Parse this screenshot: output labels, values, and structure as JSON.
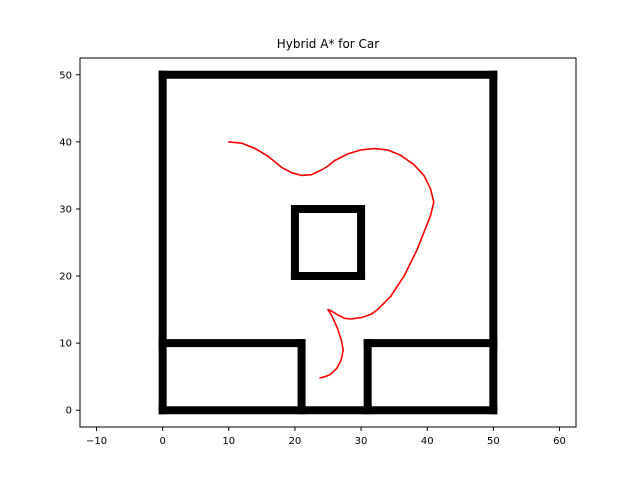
{
  "chart_data": {
    "type": "line",
    "title": "Hybrid A* for Car",
    "xlabel": "",
    "ylabel": "",
    "xlim": [
      -12.5,
      62.5
    ],
    "ylim": [
      -2.5,
      52.5
    ],
    "xticks": [
      -10,
      0,
      10,
      20,
      30,
      40,
      50,
      60
    ],
    "yticks": [
      0,
      10,
      20,
      30,
      40,
      50
    ],
    "grid": false,
    "colors": {
      "obstacle": "#000000",
      "path": "#ff0000",
      "axes": "#000000"
    },
    "series": [
      {
        "kind": "obstacles",
        "segments": [
          [
            [
              0,
              0
            ],
            [
              50,
              0
            ]
          ],
          [
            [
              50,
              0
            ],
            [
              50,
              50
            ]
          ],
          [
            [
              50,
              50
            ],
            [
              0,
              50
            ]
          ],
          [
            [
              0,
              50
            ],
            [
              0,
              0
            ]
          ],
          [
            [
              0,
              10
            ],
            [
              21,
              10
            ]
          ],
          [
            [
              21,
              10
            ],
            [
              21,
              0
            ]
          ],
          [
            [
              31,
              0
            ],
            [
              31,
              10
            ]
          ],
          [
            [
              31,
              10
            ],
            [
              50,
              10
            ]
          ],
          [
            [
              20,
              20
            ],
            [
              30,
              20
            ]
          ],
          [
            [
              30,
              20
            ],
            [
              30,
              30
            ]
          ],
          [
            [
              30,
              30
            ],
            [
              20,
              30
            ]
          ],
          [
            [
              20,
              30
            ],
            [
              20,
              20
            ]
          ]
        ]
      },
      {
        "kind": "path",
        "points": [
          [
            10,
            40
          ],
          [
            12,
            39.8
          ],
          [
            14,
            39
          ],
          [
            16,
            37.8
          ],
          [
            18,
            36.2
          ],
          [
            19.5,
            35.4
          ],
          [
            21,
            35
          ],
          [
            22.5,
            35.1
          ],
          [
            24,
            35.8
          ],
          [
            25,
            36.4
          ],
          [
            26,
            37.2
          ],
          [
            28,
            38.2
          ],
          [
            30,
            38.8
          ],
          [
            32,
            39
          ],
          [
            34,
            38.8
          ],
          [
            36,
            38
          ],
          [
            38,
            36.6
          ],
          [
            39.5,
            35
          ],
          [
            40.5,
            33
          ],
          [
            41,
            31
          ],
          [
            40.5,
            29
          ],
          [
            39.5,
            26.5
          ],
          [
            38.5,
            24
          ],
          [
            37.5,
            22
          ],
          [
            36.5,
            20
          ],
          [
            35.5,
            18.5
          ],
          [
            34.5,
            17
          ],
          [
            33.5,
            16
          ],
          [
            32.5,
            15
          ],
          [
            31.5,
            14.3
          ],
          [
            30,
            13.8
          ],
          [
            28.5,
            13.6
          ],
          [
            27.5,
            13.7
          ],
          [
            26.5,
            14.2
          ],
          [
            25.5,
            14.8
          ],
          [
            25,
            15
          ],
          [
            25.5,
            14.2
          ],
          [
            26,
            13.2
          ],
          [
            26.5,
            12
          ],
          [
            27,
            10.5
          ],
          [
            27.3,
            9
          ],
          [
            27,
            7.5
          ],
          [
            26.3,
            6.2
          ],
          [
            25.3,
            5.3
          ],
          [
            24.5,
            5
          ],
          [
            23.8,
            4.8
          ]
        ]
      }
    ]
  }
}
